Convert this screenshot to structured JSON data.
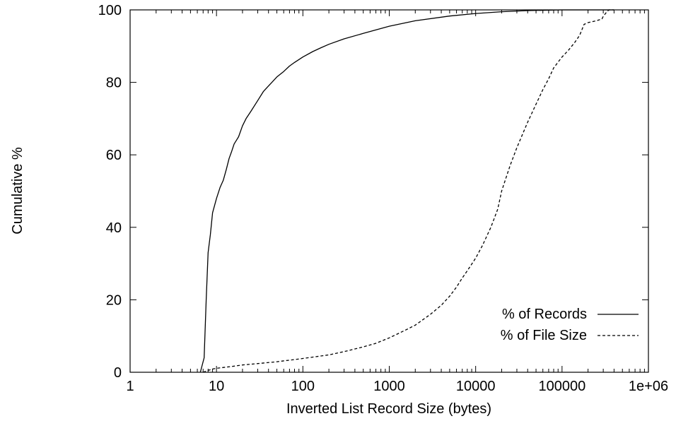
{
  "chart_data": {
    "type": "line",
    "xlabel": "Inverted List Record Size (bytes)",
    "ylabel": "Cumulative %",
    "xscale": "log",
    "xlim": [
      1,
      1000000
    ],
    "ylim": [
      0,
      100
    ],
    "x_tick_labels": [
      "1",
      "10",
      "100",
      "1000",
      "10000",
      "100000",
      "1e+06"
    ],
    "y_tick_labels": [
      "0",
      "20",
      "40",
      "60",
      "80",
      "100"
    ],
    "grid": false,
    "legend_position": "bottom-right",
    "series": [
      {
        "name": "% of Records",
        "line_style": "solid",
        "x": [
          6.5,
          7.2,
          7.6,
          8,
          8.5,
          9,
          10,
          11,
          12,
          13,
          14,
          15,
          16,
          17,
          18,
          20,
          22,
          25,
          30,
          35,
          40,
          50,
          60,
          70,
          80,
          100,
          130,
          160,
          200,
          300,
          500,
          1000,
          2000,
          5000,
          10000,
          20000,
          40000,
          100000,
          200000,
          400000
        ],
        "values": [
          0,
          4,
          20,
          33,
          38,
          44,
          48,
          51,
          53,
          56,
          59,
          61,
          63,
          64,
          65,
          68,
          70,
          72,
          75,
          77.5,
          79,
          81.5,
          83,
          84.5,
          85.5,
          87,
          88.5,
          89.5,
          90.5,
          92,
          93.5,
          95.5,
          97,
          98.3,
          99,
          99.5,
          99.8,
          100,
          100,
          100
        ]
      },
      {
        "name": "% of File Size",
        "line_style": "dashed",
        "x": [
          7,
          8,
          9,
          10,
          15,
          20,
          30,
          50,
          100,
          200,
          300,
          500,
          700,
          1000,
          1500,
          2000,
          3000,
          4000,
          5000,
          6000,
          7000,
          8000,
          10000,
          12000,
          15000,
          18000,
          20000,
          25000,
          30000,
          40000,
          50000,
          60000,
          70000,
          80000,
          100000,
          120000,
          140000,
          160000,
          180000,
          200000,
          250000,
          290000,
          300000,
          330000,
          350000,
          400000
        ],
        "values": [
          0,
          0.5,
          0.9,
          1.1,
          1.6,
          2,
          2.4,
          2.9,
          3.8,
          4.8,
          5.7,
          7,
          8,
          9.5,
          11.5,
          13,
          16,
          18.5,
          21,
          23.5,
          26,
          28,
          31.5,
          35,
          40,
          45,
          50,
          57,
          62,
          69,
          74,
          78,
          81,
          84,
          87,
          89,
          91,
          93,
          96,
          96.5,
          97,
          97.5,
          98.2,
          99.5,
          100,
          100
        ]
      }
    ]
  }
}
